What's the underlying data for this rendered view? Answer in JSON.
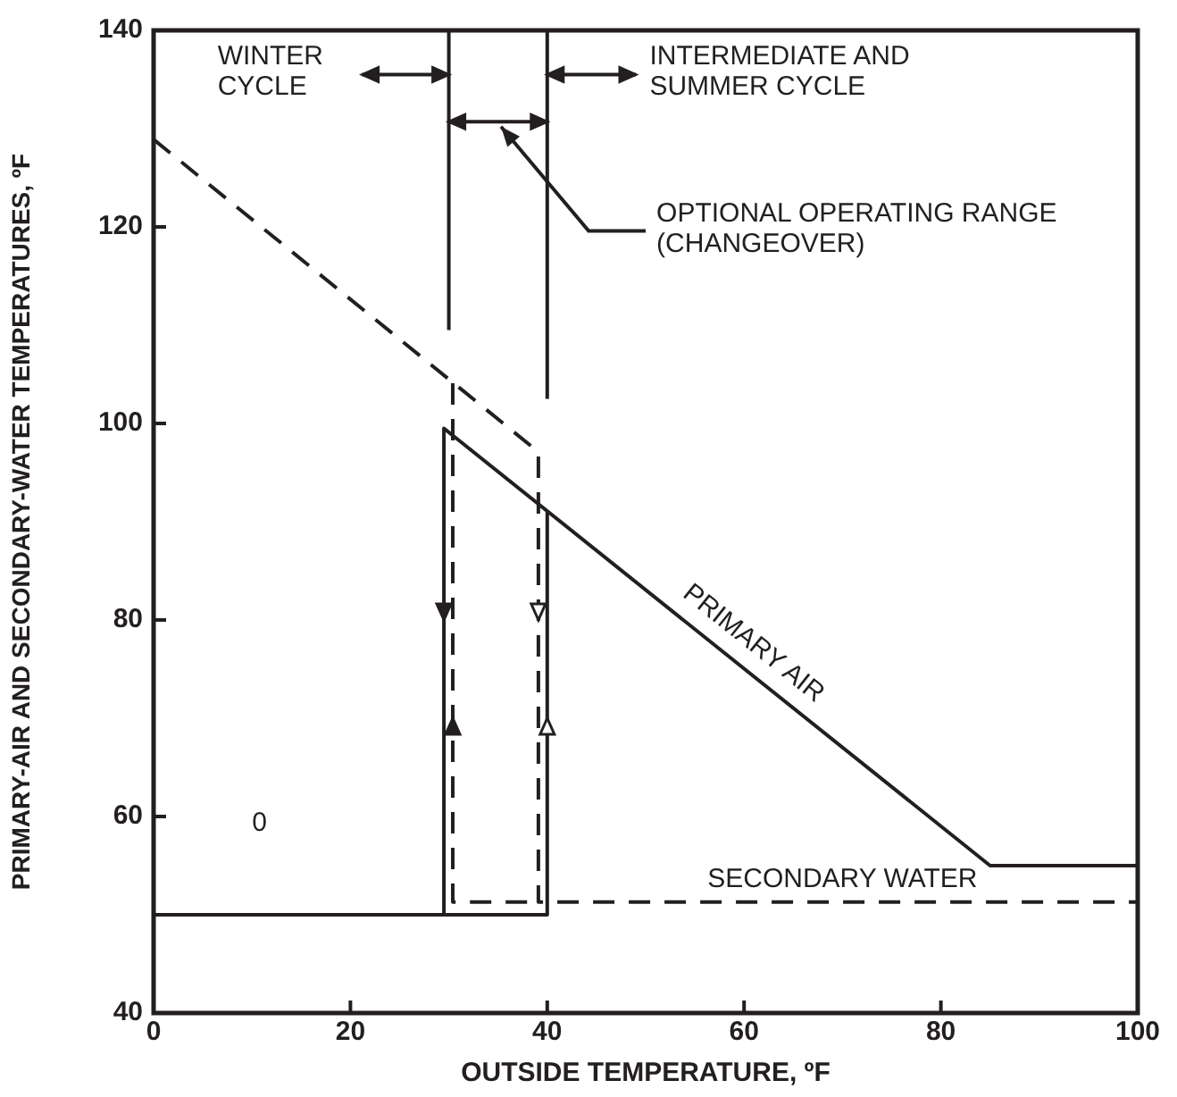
{
  "chart_data": {
    "type": "line",
    "xlabel": "OUTSIDE TEMPERATURE, ºF",
    "ylabel": "PRIMARY-AIR AND SECONDARY-WATER TEMPERATURES, ºF",
    "xlim": [
      0,
      100
    ],
    "ylim": [
      40,
      140
    ],
    "xticks": [
      0,
      20,
      40,
      60,
      80,
      100
    ],
    "yticks": [
      40,
      60,
      80,
      100,
      120,
      140
    ],
    "grid": false,
    "legend": false,
    "marker": "none",
    "series": [
      {
        "name": "PRIMARY AIR",
        "color": "#231f20",
        "line_style": "solid",
        "x": [
          0,
          29.5,
          29.5,
          85,
          100,
          null,
          29.5,
          40,
          40
        ],
        "values": [
          50,
          50,
          99.5,
          55,
          55,
          null,
          50,
          50,
          91
        ]
      },
      {
        "name": "SECONDARY WATER",
        "color": "#231f20",
        "line_style": "dashed",
        "x": [
          0,
          39.1,
          39.1,
          100,
          null,
          30.4,
          30.4,
          39.1
        ],
        "values": [
          128.9,
          97.1,
          51.3,
          51.3,
          null,
          104.1,
          51.3,
          51.3
        ]
      }
    ],
    "ref_lines": [
      {
        "axis": "x",
        "value": 30
      },
      {
        "axis": "x",
        "value": 40
      }
    ],
    "annotations": [
      "WINTER CYCLE",
      "INTERMEDIATE AND SUMMER CYCLE",
      "OPTIONAL OPERATING RANGE (CHANGEOVER)",
      "0"
    ]
  }
}
